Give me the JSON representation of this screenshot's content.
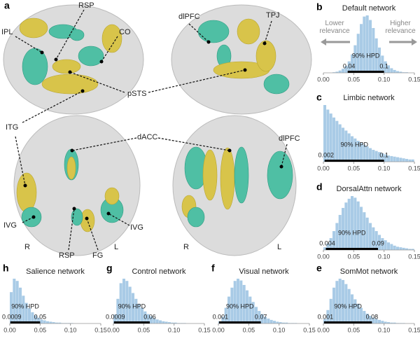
{
  "figure": {
    "panel_labels": [
      "a",
      "b",
      "c",
      "d",
      "e",
      "f",
      "g",
      "h"
    ],
    "brain_labels": [
      "IPL",
      "RSP",
      "CO",
      "dlPFC",
      "TPJ",
      "pSTS",
      "ITG",
      "dACC",
      "dlPFC",
      "IVG",
      "RSP",
      "FG",
      "IVG"
    ],
    "orientation": [
      "R",
      "L",
      "R",
      "L"
    ],
    "relevance": [
      "Lower relevance",
      "Higher relevance"
    ]
  },
  "chart_data": [
    {
      "type": "histogram",
      "title": "Default network",
      "color": "#a9cbe6",
      "bins": [
        0,
        0.005,
        0.01,
        0.015,
        0.02,
        0.025,
        0.03,
        0.035,
        0.04,
        0.045,
        0.05,
        0.055,
        0.06,
        0.065,
        0.07,
        0.075,
        0.08,
        0.085,
        0.09,
        0.095,
        0.1,
        0.105,
        0.11,
        0.115,
        0.12,
        0.125,
        0.13,
        0.135,
        0.14,
        0.145,
        0.15
      ],
      "values": [
        0,
        0,
        0,
        1,
        2,
        4,
        7,
        12,
        20,
        32,
        48,
        68,
        85,
        98,
        100,
        92,
        78,
        60,
        44,
        30,
        20,
        13,
        8,
        5,
        3,
        2,
        1,
        1,
        0,
        0
      ],
      "xlim": [
        0,
        0.15
      ],
      "xticks": [
        {
          "value": 0,
          "label": "0.00"
        },
        0.05,
        {
          "value": 0.1,
          "label": "0.10"
        },
        0.15
      ],
      "hpd": {
        "label": "90% HPD",
        "interval": [
          0.04,
          0.1
        ]
      }
    },
    {
      "type": "histogram",
      "title": "Limbic network",
      "color": "#a9cbe6",
      "bins": [
        0,
        0.005,
        0.01,
        0.015,
        0.02,
        0.025,
        0.03,
        0.035,
        0.04,
        0.045,
        0.05,
        0.055,
        0.06,
        0.065,
        0.07,
        0.075,
        0.08,
        0.085,
        0.09,
        0.095,
        0.1,
        0.105,
        0.11,
        0.115,
        0.12,
        0.125,
        0.13,
        0.135,
        0.14,
        0.145,
        0.15
      ],
      "values": [
        100,
        92,
        85,
        78,
        72,
        66,
        60,
        55,
        50,
        45,
        41,
        37,
        33,
        30,
        27,
        24,
        21,
        19,
        17,
        15,
        13,
        11,
        10,
        9,
        8,
        7,
        6,
        5,
        4,
        4
      ],
      "xlim": [
        0,
        0.15
      ],
      "xticks": [
        {
          "value": 0,
          "label": "0.00"
        },
        0.05,
        {
          "value": 0.1,
          "label": "0.10"
        },
        0.15
      ],
      "hpd": {
        "label": "90% HPD",
        "interval": [
          0.002,
          0.1
        ]
      }
    },
    {
      "type": "histogram",
      "title": "DorsalAttn network",
      "color": "#a9cbe6",
      "bins": [
        0,
        0.005,
        0.01,
        0.015,
        0.02,
        0.025,
        0.03,
        0.035,
        0.04,
        0.045,
        0.05,
        0.055,
        0.06,
        0.065,
        0.07,
        0.075,
        0.08,
        0.085,
        0.09,
        0.095,
        0.1,
        0.105,
        0.11,
        0.115,
        0.12,
        0.125,
        0.13,
        0.135,
        0.14,
        0.145,
        0.15
      ],
      "values": [
        5,
        12,
        22,
        35,
        50,
        65,
        78,
        88,
        95,
        100,
        97,
        90,
        80,
        70,
        60,
        50,
        42,
        35,
        28,
        22,
        18,
        14,
        11,
        8,
        6,
        5,
        4,
        3,
        2,
        2
      ],
      "xlim": [
        0,
        0.15
      ],
      "xticks": [
        {
          "value": 0,
          "label": "0.00"
        },
        0.05,
        {
          "value": 0.1,
          "label": "0.10"
        },
        0.15
      ],
      "hpd": {
        "label": "90% HPD",
        "interval": [
          0.004,
          0.09
        ]
      }
    },
    {
      "type": "histogram",
      "title": "SomMot network",
      "color": "#a9cbe6",
      "bins": [
        0,
        0.005,
        0.01,
        0.015,
        0.02,
        0.025,
        0.03,
        0.035,
        0.04,
        0.045,
        0.05,
        0.055,
        0.06,
        0.065,
        0.07,
        0.075,
        0.08,
        0.085,
        0.09,
        0.095,
        0.1,
        0.105,
        0.11,
        0.115,
        0.12,
        0.125,
        0.13,
        0.135,
        0.14,
        0.145,
        0.15
      ],
      "values": [
        10,
        30,
        55,
        80,
        95,
        100,
        97,
        88,
        77,
        65,
        54,
        44,
        35,
        28,
        22,
        17,
        13,
        10,
        8,
        6,
        4,
        3,
        2,
        2,
        1,
        1,
        1,
        0,
        0,
        0
      ],
      "xlim": [
        0,
        0.15
      ],
      "xticks": [
        {
          "value": 0,
          "label": "0.00"
        },
        0.05,
        {
          "value": 0.1,
          "label": "0.10"
        },
        0.15
      ],
      "hpd": {
        "label": "90% HPD",
        "interval": [
          0.001,
          0.08
        ]
      }
    },
    {
      "type": "histogram",
      "title": "Visual network",
      "color": "#a9cbe6",
      "bins": [
        0,
        0.005,
        0.01,
        0.015,
        0.02,
        0.025,
        0.03,
        0.035,
        0.04,
        0.045,
        0.05,
        0.055,
        0.06,
        0.065,
        0.07,
        0.075,
        0.08,
        0.085,
        0.09,
        0.095,
        0.1,
        0.105,
        0.11,
        0.115,
        0.12,
        0.125,
        0.13,
        0.135,
        0.14,
        0.145,
        0.15
      ],
      "values": [
        5,
        15,
        35,
        60,
        80,
        95,
        100,
        96,
        86,
        74,
        60,
        48,
        37,
        28,
        21,
        15,
        11,
        8,
        6,
        4,
        3,
        2,
        2,
        1,
        1,
        1,
        0,
        0,
        0,
        0
      ],
      "xlim": [
        0,
        0.15
      ],
      "xticks": [
        {
          "value": 0,
          "label": "0.00"
        },
        0.05,
        {
          "value": 0.1,
          "label": "0.10"
        },
        0.15
      ],
      "hpd": {
        "label": "90% HPD",
        "interval": [
          0.001,
          0.07
        ]
      }
    },
    {
      "type": "histogram",
      "title": "Control network",
      "color": "#a9cbe6",
      "bins": [
        0,
        0.005,
        0.01,
        0.015,
        0.02,
        0.025,
        0.03,
        0.035,
        0.04,
        0.045,
        0.05,
        0.055,
        0.06,
        0.065,
        0.07,
        0.075,
        0.08,
        0.085,
        0.09,
        0.095,
        0.1,
        0.105,
        0.11,
        0.115,
        0.12,
        0.125,
        0.13,
        0.135,
        0.14,
        0.145,
        0.15
      ],
      "values": [
        20,
        55,
        90,
        100,
        95,
        82,
        68,
        55,
        44,
        35,
        27,
        21,
        16,
        12,
        9,
        7,
        5,
        4,
        3,
        2,
        2,
        1,
        1,
        1,
        0,
        0,
        0,
        0,
        0,
        0
      ],
      "xlim": [
        0,
        0.15
      ],
      "xticks": [
        {
          "value": 0,
          "label": "0.00"
        },
        0.05,
        {
          "value": 0.1,
          "label": "0.10"
        },
        0.15
      ],
      "hpd": {
        "label": "90% HPD",
        "interval": [
          0.0009,
          0.06
        ]
      }
    },
    {
      "type": "histogram",
      "title": "Salience network",
      "color": "#a9cbe6",
      "bins": [
        0,
        0.005,
        0.01,
        0.015,
        0.02,
        0.025,
        0.03,
        0.035,
        0.04,
        0.045,
        0.05,
        0.055,
        0.06,
        0.065,
        0.07,
        0.075,
        0.08,
        0.085,
        0.09,
        0.095,
        0.1,
        0.105,
        0.11,
        0.115,
        0.12,
        0.125,
        0.13,
        0.135,
        0.14,
        0.145,
        0.15
      ],
      "values": [
        70,
        100,
        95,
        80,
        62,
        46,
        34,
        25,
        18,
        13,
        9,
        7,
        5,
        4,
        3,
        2,
        2,
        1,
        1,
        1,
        1,
        0,
        0,
        0,
        0,
        0,
        0,
        0,
        0,
        0
      ],
      "xlim": [
        0,
        0.15
      ],
      "xticks": [
        {
          "value": 0,
          "label": "0.00"
        },
        0.05,
        {
          "value": 0.1,
          "label": "0.10"
        },
        0.15
      ],
      "hpd": {
        "label": "90% HPD",
        "interval": [
          0.0009,
          0.05
        ]
      }
    }
  ]
}
